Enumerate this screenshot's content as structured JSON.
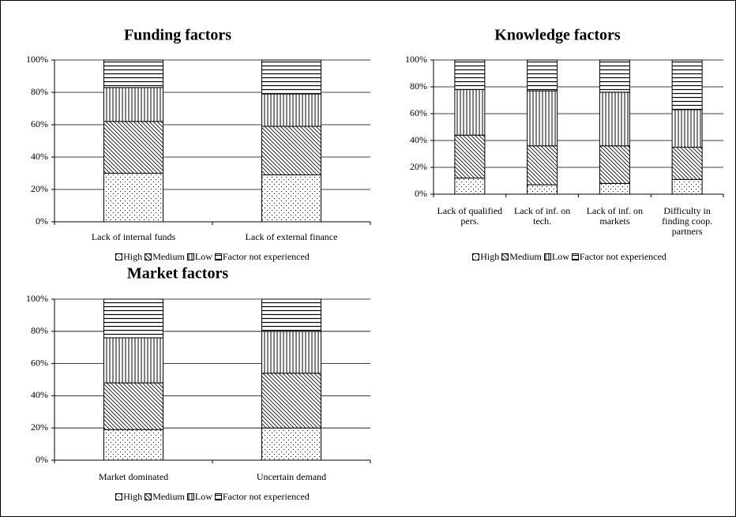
{
  "chart_data": [
    {
      "type": "bar",
      "stacked": true,
      "title": "Funding factors",
      "categories": [
        "Lack of internal funds",
        "Lack of external finance"
      ],
      "series": [
        {
          "name": "High",
          "color": "#000000",
          "pattern": "dots",
          "values": [
            30,
            29
          ]
        },
        {
          "name": "Medium",
          "color": "#000000",
          "pattern": "diagonal",
          "values": [
            32,
            30
          ]
        },
        {
          "name": "Low",
          "color": "#000000",
          "pattern": "vertical",
          "values": [
            21,
            20
          ]
        },
        {
          "name": "Factor not experienced",
          "color": "#000000",
          "pattern": "horizontal",
          "values": [
            17,
            21
          ]
        }
      ],
      "ylim": [
        0,
        100
      ],
      "yticks": [
        {
          "value": 0,
          "label": "0%"
        },
        {
          "value": 20,
          "label": "20%"
        },
        {
          "value": 40,
          "label": "40%"
        },
        {
          "value": 60,
          "label": "60%"
        },
        {
          "value": 80,
          "label": "80%"
        },
        {
          "value": 100,
          "label": "100%"
        }
      ],
      "grid": true,
      "legend": "bottom"
    },
    {
      "type": "bar",
      "stacked": true,
      "title": "Knowledge factors",
      "categories": [
        "Lack of qualified pers.",
        "Lack of inf. on tech.",
        "Lack of inf. on markets",
        "Difficulty in finding coop. partners"
      ],
      "series": [
        {
          "name": "High",
          "color": "#000000",
          "pattern": "dots",
          "values": [
            12,
            7,
            8,
            11
          ]
        },
        {
          "name": "Medium",
          "color": "#000000",
          "pattern": "diagonal",
          "values": [
            32,
            29,
            28,
            24
          ]
        },
        {
          "name": "Low",
          "color": "#000000",
          "pattern": "vertical",
          "values": [
            34,
            41,
            40,
            28
          ]
        },
        {
          "name": "Factor not experienced",
          "color": "#000000",
          "pattern": "horizontal",
          "values": [
            22,
            23,
            24,
            37
          ]
        }
      ],
      "ylim": [
        0,
        100
      ],
      "yticks": [
        {
          "value": 0,
          "label": "0%"
        },
        {
          "value": 20,
          "label": "20%"
        },
        {
          "value": 40,
          "label": "40%"
        },
        {
          "value": 60,
          "label": "60%"
        },
        {
          "value": 80,
          "label": "80%"
        },
        {
          "value": 100,
          "label": "100%"
        }
      ],
      "grid": true,
      "legend": "bottom"
    },
    {
      "type": "bar",
      "stacked": true,
      "title": "Market factors",
      "categories": [
        "Market dominated",
        "Uncertain demand"
      ],
      "series": [
        {
          "name": "High",
          "color": "#000000",
          "pattern": "dots",
          "values": [
            19,
            20
          ]
        },
        {
          "name": "Medium",
          "color": "#000000",
          "pattern": "diagonal",
          "values": [
            29,
            34
          ]
        },
        {
          "name": "Low",
          "color": "#000000",
          "pattern": "vertical",
          "values": [
            28,
            26
          ]
        },
        {
          "name": "Factor not experienced",
          "color": "#000000",
          "pattern": "horizontal",
          "values": [
            24,
            20
          ]
        }
      ],
      "ylim": [
        0,
        100
      ],
      "yticks": [
        {
          "value": 0,
          "label": "0%"
        },
        {
          "value": 20,
          "label": "20%"
        },
        {
          "value": 40,
          "label": "40%"
        },
        {
          "value": 60,
          "label": "60%"
        },
        {
          "value": 80,
          "label": "80%"
        },
        {
          "value": 100,
          "label": "100%"
        }
      ],
      "grid": true,
      "legend": "bottom"
    }
  ]
}
